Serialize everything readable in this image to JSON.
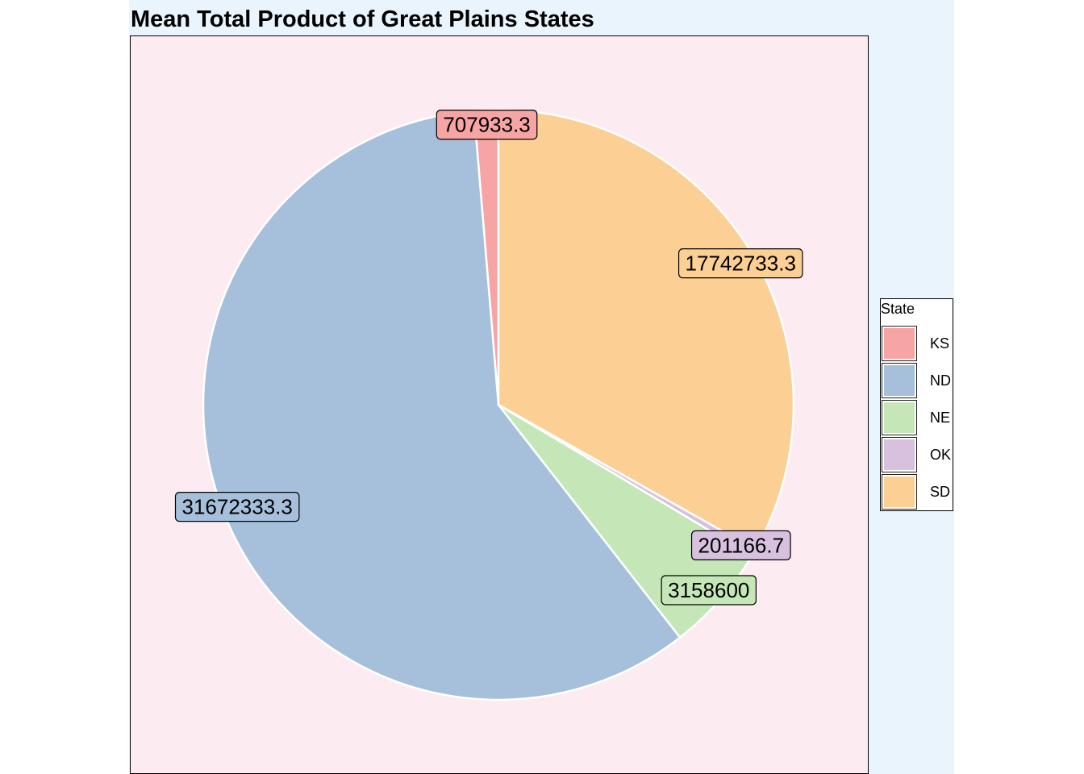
{
  "chart_data": {
    "type": "pie",
    "title": "Mean Total Product of Great Plains States",
    "legend_title": "State",
    "legend_position": "right",
    "categories": [
      "KS",
      "ND",
      "NE",
      "OK",
      "SD"
    ],
    "values": [
      707933.3,
      31672333.3,
      3158600,
      201166.7,
      17742733.3
    ],
    "labels": [
      "707933.3",
      "31672333.3",
      "3158600",
      "201166.7",
      "17742733.3"
    ],
    "colors": [
      "#f6a4a4",
      "#a6c0db",
      "#c5e7b7",
      "#d8c1df",
      "#fccf94"
    ]
  },
  "colors": {
    "figure_background": "#eaf4fd",
    "panel_background": "#fdebf2",
    "slice_border": "#ffffff"
  }
}
